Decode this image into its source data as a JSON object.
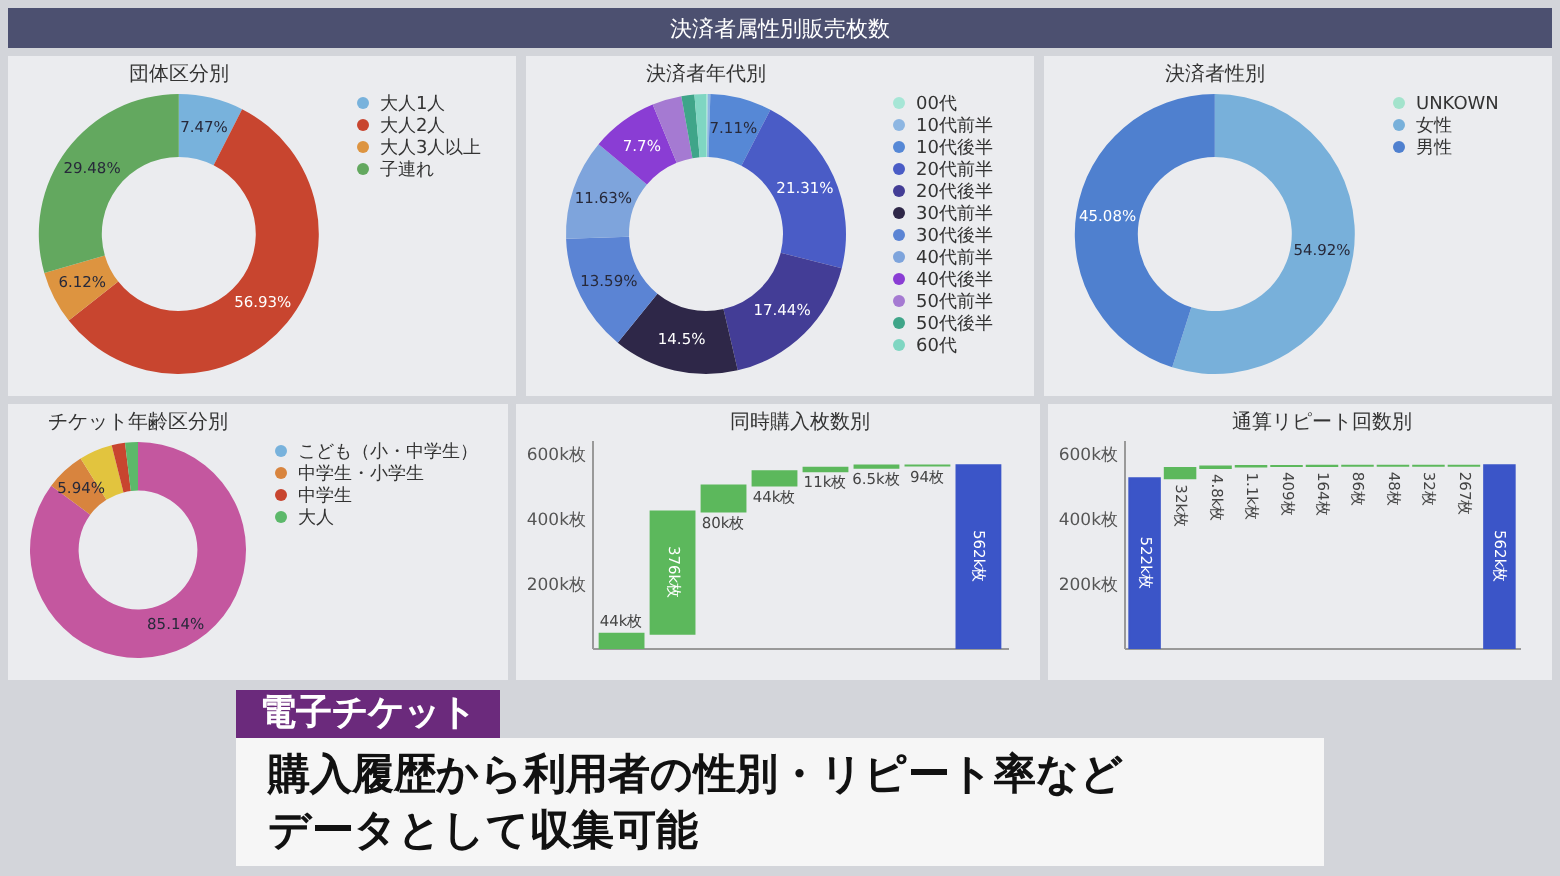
{
  "chart_data": [
    {
      "type": "other",
      "title": "決済者属性別販売枚数"
    },
    {
      "type": "donut",
      "title": "団体区分別",
      "categories": [
        "大人1人",
        "大人2人",
        "大人3人以上",
        "子連れ"
      ],
      "values": [
        7.47,
        56.93,
        6.12,
        29.48
      ],
      "colors": [
        "#78b2dc",
        "#c8452f",
        "#dd9440",
        "#63a85f"
      ],
      "value_labels": [
        "7.47%",
        "56.93%",
        "6.12%",
        "29.48%"
      ],
      "legend": "top right"
    },
    {
      "type": "donut",
      "title": "決済者年代別",
      "categories": [
        "00代",
        "10代前半",
        "10代後半",
        "20代前半",
        "20代後半",
        "30代前半",
        "30代後半",
        "40代前半",
        "40代後半",
        "50代前半",
        "50代後半",
        "60代"
      ],
      "values": [
        0.2,
        0.3,
        7.11,
        21.31,
        17.44,
        14.5,
        13.59,
        11.63,
        7.7,
        3.4,
        1.5,
        1.32
      ],
      "colors": [
        "#a6e6d6",
        "#8db6e2",
        "#5688d6",
        "#4a5cc6",
        "#433d96",
        "#2e2748",
        "#5b84d4",
        "#7ea4dc",
        "#8a3dd4",
        "#a57ad2",
        "#3fa589",
        "#7fd6c2"
      ],
      "value_labels": [
        null,
        null,
        "7.11%",
        "21.31%",
        "17.44%",
        "14.5%",
        "13.59%",
        "11.63%",
        "7.7%",
        null,
        null,
        null
      ],
      "legend": "top right"
    },
    {
      "type": "donut",
      "title": "決済者性別",
      "categories": [
        "UNKOWN",
        "女性",
        "男性"
      ],
      "values": [
        0,
        54.92,
        45.08
      ],
      "colors": [
        "#a3e3cc",
        "#78b0da",
        "#4f80cf"
      ],
      "value_labels": [
        null,
        "54.92%",
        "45.08%"
      ],
      "legend": "top right"
    },
    {
      "type": "donut",
      "title": "チケット年齢区分別",
      "categories": [
        "こども（小・中学生）",
        null,
        "中学生・小学生",
        null,
        "中学生",
        "大人"
      ],
      "values": [
        0,
        85.14,
        5.94,
        5.0,
        2.0,
        1.92
      ],
      "colors": [
        "#78b2dc",
        "#c4579f",
        "#d8843e",
        "#e2c43e",
        "#c8452f",
        "#5cb86a"
      ],
      "value_labels": [
        null,
        "85.14%",
        "5.94%",
        null,
        null,
        null
      ],
      "legend": "top right"
    },
    {
      "type": "bar",
      "title": "同時購入枚数別",
      "categories": [
        null,
        null,
        null,
        null,
        null,
        null,
        null,
        null
      ],
      "values": [
        44000,
        376000,
        80000,
        44000,
        11000,
        6500,
        94,
        562000
      ],
      "base": [
        0,
        44000,
        420000,
        500000,
        544000,
        555000,
        561500,
        0
      ],
      "colors": [
        "#5cb85c",
        "#5cb85c",
        "#5cb85c",
        "#5cb85c",
        "#5cb85c",
        "#5cb85c",
        "#5cb85c",
        "#3b55c8"
      ],
      "value_labels": [
        "44k枚",
        "376k枚",
        "80k枚",
        "44k枚",
        "11k枚",
        "6.5k枚",
        "94枚",
        "562k枚"
      ],
      "ylim": [
        0,
        640000
      ],
      "yticks": [
        {
          "value": 200000,
          "label": "200k枚"
        },
        {
          "value": 400000,
          "label": "400k枚"
        },
        {
          "value": 600000,
          "label": "600k枚"
        }
      ],
      "tick_labels": "y"
    },
    {
      "type": "bar",
      "title": "通算リピート回数別",
      "categories": [
        null,
        null,
        null,
        null,
        null,
        null,
        null,
        null,
        null,
        null,
        null
      ],
      "values": [
        522000,
        32000,
        4800,
        1100,
        409,
        164,
        86,
        48,
        32,
        267,
        562000
      ],
      "base": [
        0,
        522000,
        554000,
        558800,
        559900,
        560300,
        560500,
        560600,
        560600,
        560600,
        0
      ],
      "colors": [
        "#3b55c8",
        "#5cb85c",
        "#5cb85c",
        "#5cb85c",
        "#5cb85c",
        "#5cb85c",
        "#5cb85c",
        "#5cb85c",
        "#5cb85c",
        "#5cb85c",
        "#3b55c8"
      ],
      "value_labels": [
        "522k枚",
        "32k枚",
        "4.8k枚",
        "1.1k枚",
        "409枚",
        "164枚",
        "86枚",
        "48枚",
        "32枚",
        "267枚",
        "562k枚"
      ],
      "ylim": [
        0,
        640000
      ],
      "yticks": [
        {
          "value": 200000,
          "label": "200k枚"
        },
        {
          "value": 400000,
          "label": "400k枚"
        },
        {
          "value": 600000,
          "label": "600k枚"
        }
      ],
      "tick_labels": "y"
    },
    {
      "type": "other",
      "title": "電子チケット",
      "annotations": [
        "購入履歴から利用者の性別・リピート率など",
        "データとして収集可能"
      ]
    }
  ]
}
